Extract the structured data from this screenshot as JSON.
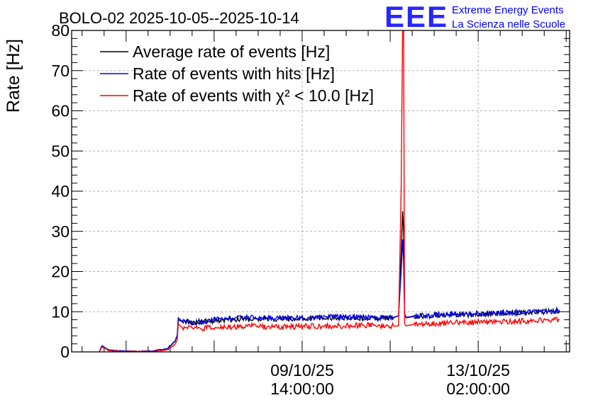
{
  "chart_data": {
    "type": "line",
    "title": "BOLO-02 2025-10-05--2025-10-14",
    "ylabel": "Rate [Hz]",
    "xlabel": "",
    "ylim": [
      0,
      80
    ],
    "yticks": [
      0,
      10,
      20,
      30,
      40,
      50,
      60,
      70,
      80
    ],
    "grid": true,
    "legend_position": "top-left",
    "x_unit": "days since 2025-10-05 00:00",
    "xlim": [
      0,
      9.9
    ],
    "xticks": [
      {
        "x": 4.583,
        "line1": "09/10/25",
        "line2": "14:00:00"
      },
      {
        "x": 8.083,
        "line1": "13/10/25",
        "line2": "02:00:00"
      }
    ],
    "series": [
      {
        "name": "Average rate of events [Hz]",
        "color": "#000000",
        "x": [
          0.55,
          0.6,
          0.75,
          1.0,
          1.3,
          1.6,
          1.9,
          2.05,
          2.1,
          2.12,
          2.2,
          2.5,
          3.0,
          3.5,
          4.0,
          4.5,
          5.0,
          5.5,
          6.0,
          6.4,
          6.5,
          6.55,
          6.58,
          6.6,
          6.62,
          6.65,
          6.7,
          6.8,
          7.0,
          7.5,
          8.0,
          8.5,
          9.0,
          9.5,
          9.7
        ],
        "values": [
          0,
          1.5,
          0.4,
          0.2,
          0.1,
          0.2,
          0.8,
          2.5,
          4.0,
          8.0,
          7.5,
          7.3,
          8.0,
          8.4,
          8.2,
          8.3,
          8.5,
          8.6,
          8.4,
          8.5,
          9.0,
          24,
          35,
          30,
          9.5,
          8.5,
          8.6,
          8.8,
          9.0,
          9.2,
          9.4,
          9.6,
          9.8,
          10.0,
          10.2
        ]
      },
      {
        "name": "Rate of events with hits [Hz]",
        "color": "#0000ff",
        "x": [
          0.55,
          0.6,
          0.75,
          1.0,
          1.3,
          1.6,
          1.9,
          2.05,
          2.1,
          2.12,
          2.2,
          2.5,
          3.0,
          3.5,
          4.0,
          4.5,
          5.0,
          5.5,
          6.0,
          6.4,
          6.5,
          6.55,
          6.58,
          6.6,
          6.62,
          6.65,
          6.7,
          6.8,
          7.0,
          7.5,
          8.0,
          8.5,
          9.0,
          9.5,
          9.7
        ],
        "values": [
          0,
          1.5,
          0.4,
          0.2,
          0.1,
          0.2,
          0.8,
          2.6,
          4.2,
          8.5,
          7.6,
          7.4,
          8.2,
          8.5,
          8.3,
          8.4,
          8.6,
          8.7,
          8.5,
          8.6,
          9.0,
          20,
          28,
          22,
          9.5,
          8.6,
          8.7,
          8.9,
          9.1,
          9.3,
          9.5,
          9.7,
          9.9,
          10.1,
          10.4
        ]
      },
      {
        "name": "Rate of events with χ² < 10.0 [Hz]",
        "color": "#ff0000",
        "x": [
          0.55,
          0.6,
          0.75,
          1.0,
          1.3,
          1.6,
          1.9,
          2.05,
          2.1,
          2.12,
          2.2,
          2.5,
          3.0,
          3.5,
          4.0,
          4.5,
          5.0,
          5.5,
          6.0,
          6.4,
          6.5,
          6.55,
          6.58,
          6.6,
          6.62,
          6.65,
          6.7,
          6.8,
          7.0,
          7.5,
          8.0,
          8.5,
          9.0,
          9.5,
          9.7
        ],
        "values": [
          0,
          1.2,
          0.3,
          0.1,
          0.1,
          0.1,
          0.5,
          1.8,
          3.0,
          7.0,
          6.0,
          5.8,
          6.2,
          6.4,
          6.2,
          6.3,
          6.4,
          6.5,
          6.6,
          6.4,
          6.5,
          40,
          80,
          80,
          7.0,
          6.5,
          6.6,
          6.8,
          7.0,
          7.2,
          7.4,
          7.5,
          7.7,
          7.9,
          8.0
        ]
      }
    ]
  },
  "branding": {
    "logo": "EEE",
    "line1": "Extreme Energy Events",
    "line2": "La Scienza nelle Scuole",
    "color": "#0000ff"
  }
}
